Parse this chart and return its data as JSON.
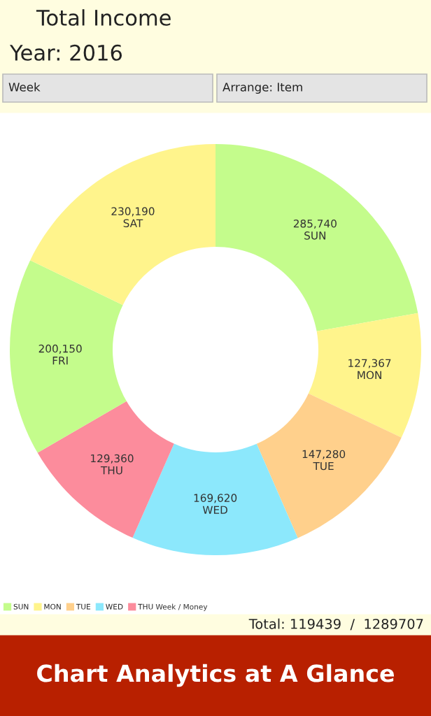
{
  "chart_data": {
    "type": "donut",
    "title": "Total Income",
    "subtitle": "Year: 2016",
    "categories": [
      "SUN",
      "MON",
      "TUE",
      "WED",
      "THU",
      "FRI",
      "SAT"
    ],
    "values": [
      285740,
      127367,
      147280,
      169620,
      129360,
      200150,
      230190
    ],
    "value_labels": [
      "285,740",
      "127,367",
      "147,280",
      "169,620",
      "129,360",
      "200,150",
      "230,190"
    ],
    "colors": [
      "#c4fc8c",
      "#fff48c",
      "#ffd08c",
      "#8ce8fc",
      "#fc8c9c",
      "#c4fc8c",
      "#fff48c"
    ],
    "legend": "bottom left",
    "legend_title": "Week / Money",
    "annotations": [
      "Week",
      "Arrange: Item",
      "Total: 119439  /  1289707",
      "Chart Analytics at A Glance"
    ]
  }
}
